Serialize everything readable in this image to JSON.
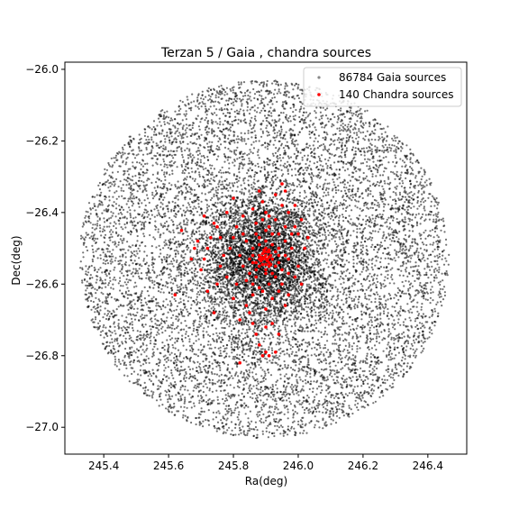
{
  "chart_data": {
    "type": "scatter",
    "title": "Terzan 5 / Gaia , chandra sources",
    "xlabel": "Ra(deg)",
    "ylabel": "Dec(deg)",
    "xlim": [
      245.28,
      246.52
    ],
    "ylim": [
      -27.075,
      -25.98
    ],
    "x_ticks": [
      245.4,
      245.6,
      245.8,
      246.0,
      246.2,
      246.4
    ],
    "x_tick_labels": [
      "245.4",
      "245.6",
      "245.8",
      "246.0",
      "246.2",
      "246.4"
    ],
    "y_ticks": [
      -26.0,
      -26.2,
      -26.4,
      -26.6,
      -26.8,
      -27.0
    ],
    "y_tick_labels": [
      "−26.0",
      "−26.2",
      "−26.4",
      "−26.6",
      "−26.8",
      "−27.0"
    ],
    "grid": false,
    "legend_position": "top-right",
    "series": [
      {
        "name": "86784 Gaia sources",
        "color": "#000000",
        "count": 86784,
        "distribution": {
          "center": [
            245.895,
            -26.53
          ],
          "radius_ra": 0.57,
          "radius_dec": 0.5,
          "core_radius_ra": 0.09,
          "core_radius_dec": 0.09
        }
      },
      {
        "name": "140 Chandra sources",
        "color": "#ff0000",
        "count": 140,
        "points": [
          [
            245.9,
            -26.52
          ],
          [
            245.905,
            -26.53
          ],
          [
            245.895,
            -26.525
          ],
          [
            245.91,
            -26.54
          ],
          [
            245.89,
            -26.515
          ],
          [
            245.915,
            -26.52
          ],
          [
            245.885,
            -26.535
          ],
          [
            245.9,
            -26.545
          ],
          [
            245.92,
            -26.53
          ],
          [
            245.88,
            -26.52
          ],
          [
            245.895,
            -26.505
          ],
          [
            245.905,
            -26.51
          ],
          [
            245.91,
            -26.55
          ],
          [
            245.9,
            -26.56
          ],
          [
            245.87,
            -26.54
          ],
          [
            245.93,
            -26.51
          ],
          [
            245.94,
            -26.5
          ],
          [
            245.86,
            -26.5
          ],
          [
            245.95,
            -26.56
          ],
          [
            245.85,
            -26.57
          ],
          [
            245.88,
            -26.47
          ],
          [
            245.92,
            -26.46
          ],
          [
            245.9,
            -26.45
          ],
          [
            245.96,
            -26.48
          ],
          [
            245.84,
            -26.48
          ],
          [
            245.97,
            -26.53
          ],
          [
            245.83,
            -26.55
          ],
          [
            245.91,
            -26.6
          ],
          [
            245.88,
            -26.61
          ],
          [
            245.94,
            -26.62
          ],
          [
            245.86,
            -26.63
          ],
          [
            245.87,
            -26.43
          ],
          [
            245.93,
            -26.42
          ],
          [
            245.9,
            -26.4
          ],
          [
            245.96,
            -26.44
          ],
          [
            245.98,
            -26.5
          ],
          [
            245.82,
            -26.52
          ],
          [
            245.99,
            -26.58
          ],
          [
            245.81,
            -26.6
          ],
          [
            245.92,
            -26.64
          ],
          [
            245.89,
            -26.37
          ],
          [
            245.86,
            -26.39
          ],
          [
            245.95,
            -26.38
          ],
          [
            245.97,
            -26.4
          ],
          [
            245.83,
            -26.41
          ],
          [
            246.0,
            -26.46
          ],
          [
            245.8,
            -26.47
          ],
          [
            245.9,
            -26.67
          ],
          [
            245.84,
            -26.66
          ],
          [
            245.96,
            -26.66
          ],
          [
            245.74,
            -26.43
          ],
          [
            245.73,
            -26.47
          ],
          [
            245.72,
            -26.5
          ],
          [
            245.71,
            -26.53
          ],
          [
            245.7,
            -26.56
          ],
          [
            245.68,
            -26.5
          ],
          [
            245.67,
            -26.53
          ],
          [
            245.64,
            -26.45
          ],
          [
            245.76,
            -26.55
          ],
          [
            245.75,
            -26.6
          ],
          [
            245.72,
            -26.62
          ],
          [
            245.78,
            -26.4
          ],
          [
            245.8,
            -26.36
          ],
          [
            245.88,
            -26.34
          ],
          [
            245.93,
            -26.35
          ],
          [
            245.95,
            -26.32
          ],
          [
            245.96,
            -26.34
          ],
          [
            245.99,
            -26.38
          ],
          [
            246.01,
            -26.42
          ],
          [
            246.02,
            -26.5
          ],
          [
            245.62,
            -26.63
          ],
          [
            245.74,
            -26.68
          ],
          [
            245.82,
            -26.7
          ],
          [
            245.86,
            -26.71
          ],
          [
            245.9,
            -26.72
          ],
          [
            245.92,
            -26.71
          ],
          [
            245.94,
            -26.74
          ],
          [
            245.88,
            -26.77
          ],
          [
            245.9,
            -26.79
          ],
          [
            245.91,
            -26.8
          ],
          [
            245.93,
            -26.79
          ],
          [
            245.89,
            -26.8
          ],
          [
            245.82,
            -26.82
          ],
          [
            245.87,
            -26.74
          ],
          [
            245.85,
            -26.68
          ],
          [
            245.87,
            -26.58
          ],
          [
            245.93,
            -26.58
          ],
          [
            245.88,
            -26.49
          ],
          [
            245.92,
            -26.49
          ],
          [
            245.9,
            -26.48
          ],
          [
            245.86,
            -26.52
          ],
          [
            245.94,
            -26.54
          ],
          [
            245.91,
            -26.505
          ],
          [
            245.89,
            -26.545
          ],
          [
            245.905,
            -26.535
          ],
          [
            245.895,
            -26.51
          ],
          [
            245.91,
            -26.525
          ],
          [
            245.885,
            -26.525
          ],
          [
            245.915,
            -26.545
          ],
          [
            245.9,
            -26.53
          ],
          [
            245.87,
            -26.56
          ],
          [
            245.93,
            -26.55
          ],
          [
            245.85,
            -26.53
          ],
          [
            245.96,
            -26.52
          ],
          [
            245.84,
            -26.59
          ],
          [
            245.97,
            -26.57
          ],
          [
            245.89,
            -26.62
          ],
          [
            245.91,
            -26.44
          ],
          [
            245.87,
            -26.46
          ],
          [
            245.94,
            -26.46
          ],
          [
            245.81,
            -26.44
          ],
          [
            245.99,
            -26.44
          ],
          [
            245.79,
            -26.5
          ],
          [
            246.0,
            -26.55
          ],
          [
            245.78,
            -26.58
          ],
          [
            246.01,
            -26.6
          ],
          [
            245.8,
            -26.64
          ],
          [
            245.97,
            -26.63
          ],
          [
            245.86,
            -26.6
          ],
          [
            245.95,
            -26.6
          ],
          [
            245.83,
            -26.46
          ],
          [
            245.98,
            -26.46
          ],
          [
            245.89,
            -26.42
          ],
          [
            245.91,
            -26.41
          ],
          [
            245.76,
            -26.47
          ],
          [
            245.77,
            -26.52
          ],
          [
            245.69,
            -26.48
          ],
          [
            245.71,
            -26.41
          ],
          [
            245.75,
            -26.44
          ],
          [
            246.03,
            -26.47
          ],
          [
            245.92,
            -26.57
          ],
          [
            245.88,
            -26.55
          ],
          [
            245.9,
            -26.57
          ],
          [
            245.91,
            -26.51
          ],
          [
            245.89,
            -26.53
          ],
          [
            245.94,
            -26.52
          ],
          [
            245.86,
            -26.54
          ],
          [
            245.9,
            -26.5
          ],
          [
            245.92,
            -26.53
          ],
          [
            245.88,
            -26.53
          ]
        ]
      }
    ]
  }
}
